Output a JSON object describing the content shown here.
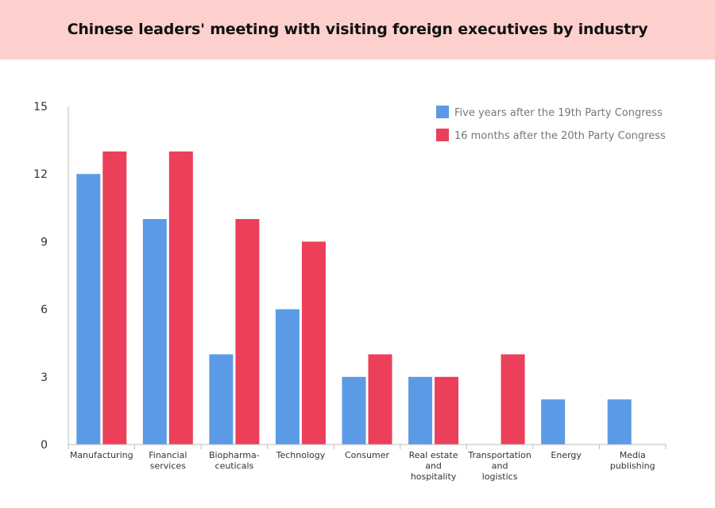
{
  "header": {
    "title": "Chinese leaders' meeting with visiting foreign executives by industry"
  },
  "colors": {
    "header_bg": "#fdd0cd",
    "series_1": "#5b9be6",
    "series_2": "#ec3f5a",
    "axis": "#bbbbbb"
  },
  "chart_data": {
    "type": "bar",
    "title": "Chinese leaders' meeting with visiting foreign executives by industry",
    "xlabel": "",
    "ylabel": "",
    "ylim": [
      0,
      15
    ],
    "yticks": [
      0,
      3,
      6,
      9,
      12,
      15
    ],
    "grid": false,
    "legend_position": "top-right",
    "categories": [
      [
        "Manufacturing"
      ],
      [
        "Financial",
        "services"
      ],
      [
        "Biopharma-",
        "ceuticals"
      ],
      [
        "Technology"
      ],
      [
        "Consumer"
      ],
      [
        "Real estate",
        "and",
        "hospitality"
      ],
      [
        "Transportation",
        "and",
        "logistics"
      ],
      [
        "Energy"
      ],
      [
        "Media",
        "publishing"
      ]
    ],
    "series": [
      {
        "name": "Five years after the 19th Party Congress",
        "values": [
          12,
          10,
          4,
          6,
          3,
          3,
          0,
          2,
          2
        ]
      },
      {
        "name": "16 months after the 20th Party Congress",
        "values": [
          13,
          13,
          10,
          9,
          4,
          3,
          4,
          0,
          0
        ]
      }
    ]
  }
}
